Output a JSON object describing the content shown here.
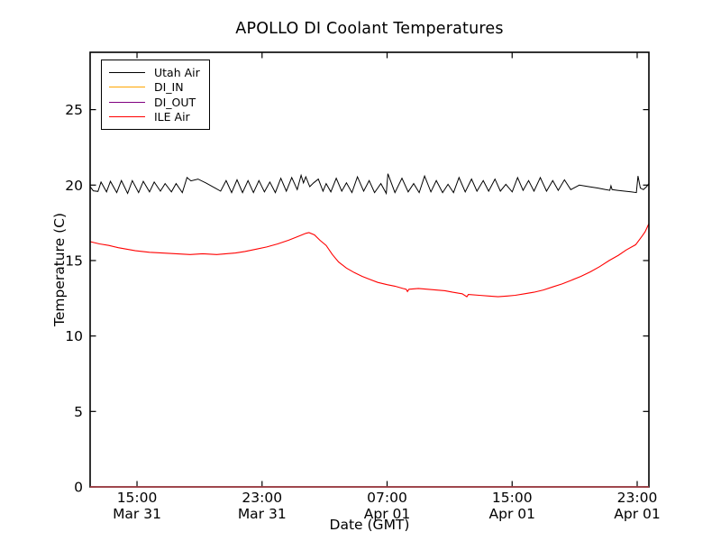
{
  "figure": {
    "kind": "matplotlib line chart"
  },
  "chart_data": {
    "type": "line",
    "title": "APOLLO DI Coolant Temperatures",
    "xlabel": "Date (GMT)",
    "ylabel": "Temperature (C)",
    "x_unit": "hours since Mar 31 12:00 GMT",
    "xlim": [
      0,
      35.75
    ],
    "ylim": [
      0,
      28.8
    ],
    "yticks": [
      0,
      5,
      10,
      15,
      20,
      25
    ],
    "xticks": [
      {
        "t": 3,
        "time": "15:00",
        "date": "Mar 31"
      },
      {
        "t": 11,
        "time": "23:00",
        "date": "Mar 31"
      },
      {
        "t": 19,
        "time": "07:00",
        "date": "Apr 01"
      },
      {
        "t": 27,
        "time": "15:00",
        "date": "Apr 01"
      },
      {
        "t": 35,
        "time": "23:00",
        "date": "Apr 01"
      }
    ],
    "grid": false,
    "legend_position": "upper left",
    "series": [
      {
        "name": "Utah Air",
        "color": "#000000",
        "width": 1.0,
        "opacity": 1.0,
        "points": [
          [
            0,
            19.9
          ],
          [
            0.2,
            19.62
          ],
          [
            0.5,
            19.58
          ],
          [
            0.7,
            20.2
          ],
          [
            1.05,
            19.55
          ],
          [
            1.3,
            20.25
          ],
          [
            1.7,
            19.5
          ],
          [
            2.0,
            20.3
          ],
          [
            2.4,
            19.45
          ],
          [
            2.7,
            20.3
          ],
          [
            3.1,
            19.5
          ],
          [
            3.4,
            20.25
          ],
          [
            3.8,
            19.55
          ],
          [
            4.1,
            20.2
          ],
          [
            4.5,
            19.6
          ],
          [
            4.8,
            20.1
          ],
          [
            5.2,
            19.55
          ],
          [
            5.5,
            20.1
          ],
          [
            5.9,
            19.5
          ],
          [
            6.2,
            20.5
          ],
          [
            6.45,
            20.28
          ],
          [
            6.9,
            20.4
          ],
          [
            7.4,
            20.15
          ],
          [
            8.0,
            19.8
          ],
          [
            8.35,
            19.6
          ],
          [
            8.7,
            20.3
          ],
          [
            9.05,
            19.5
          ],
          [
            9.4,
            20.35
          ],
          [
            9.75,
            19.5
          ],
          [
            10.1,
            20.3
          ],
          [
            10.45,
            19.5
          ],
          [
            10.8,
            20.3
          ],
          [
            11.15,
            19.55
          ],
          [
            11.5,
            20.2
          ],
          [
            11.85,
            19.5
          ],
          [
            12.2,
            20.45
          ],
          [
            12.55,
            19.6
          ],
          [
            12.9,
            20.5
          ],
          [
            13.25,
            19.7
          ],
          [
            13.5,
            20.65
          ],
          [
            13.65,
            20.15
          ],
          [
            13.8,
            20.55
          ],
          [
            14.05,
            19.9
          ],
          [
            14.3,
            20.15
          ],
          [
            14.6,
            20.4
          ],
          [
            14.9,
            19.6
          ],
          [
            15.1,
            20.1
          ],
          [
            15.4,
            19.55
          ],
          [
            15.75,
            20.45
          ],
          [
            16.1,
            19.6
          ],
          [
            16.4,
            20.15
          ],
          [
            16.75,
            19.5
          ],
          [
            17.1,
            20.55
          ],
          [
            17.5,
            19.6
          ],
          [
            17.85,
            20.3
          ],
          [
            18.2,
            19.5
          ],
          [
            18.6,
            20.1
          ],
          [
            18.95,
            19.45
          ],
          [
            19.05,
            20.75
          ],
          [
            19.5,
            19.5
          ],
          [
            19.95,
            20.45
          ],
          [
            20.35,
            19.55
          ],
          [
            20.7,
            20.1
          ],
          [
            21.05,
            19.5
          ],
          [
            21.4,
            20.6
          ],
          [
            21.8,
            19.55
          ],
          [
            22.15,
            20.3
          ],
          [
            22.55,
            19.5
          ],
          [
            22.9,
            20.05
          ],
          [
            23.25,
            19.5
          ],
          [
            23.6,
            20.5
          ],
          [
            24.0,
            19.55
          ],
          [
            24.4,
            20.4
          ],
          [
            24.75,
            19.6
          ],
          [
            25.15,
            20.3
          ],
          [
            25.5,
            19.6
          ],
          [
            25.9,
            20.4
          ],
          [
            26.25,
            19.6
          ],
          [
            26.6,
            20.05
          ],
          [
            27.0,
            19.55
          ],
          [
            27.35,
            20.5
          ],
          [
            27.7,
            19.65
          ],
          [
            28.05,
            20.3
          ],
          [
            28.4,
            19.6
          ],
          [
            28.8,
            20.5
          ],
          [
            29.2,
            19.6
          ],
          [
            29.6,
            20.3
          ],
          [
            29.95,
            19.65
          ],
          [
            30.35,
            20.35
          ],
          [
            30.75,
            19.7
          ],
          [
            31.3,
            20.0
          ],
          [
            31.9,
            19.9
          ],
          [
            32.5,
            19.8
          ],
          [
            32.9,
            19.72
          ],
          [
            33.25,
            19.65
          ],
          [
            33.32,
            19.95
          ],
          [
            33.4,
            19.7
          ],
          [
            33.75,
            19.65
          ],
          [
            34.2,
            19.6
          ],
          [
            34.6,
            19.55
          ],
          [
            34.95,
            19.5
          ],
          [
            35.05,
            20.6
          ],
          [
            35.2,
            19.8
          ],
          [
            35.4,
            19.7
          ],
          [
            35.6,
            19.9
          ],
          [
            35.75,
            20.1
          ]
        ]
      },
      {
        "name": "DI_IN",
        "color": "#ffa500",
        "width": 1.4,
        "opacity": 0.85,
        "points": [
          [
            0,
            0
          ],
          [
            35.75,
            0
          ]
        ]
      },
      {
        "name": "DI_OUT",
        "color": "#800080",
        "width": 1.4,
        "opacity": 0.6,
        "points": [
          [
            0,
            0
          ],
          [
            35.75,
            0
          ]
        ]
      },
      {
        "name": "ILE Air",
        "color": "#ff0000",
        "width": 1.1,
        "opacity": 1.0,
        "points": [
          [
            0,
            16.25
          ],
          [
            0.6,
            16.1
          ],
          [
            1.2,
            16.0
          ],
          [
            1.8,
            15.85
          ],
          [
            2.9,
            15.65
          ],
          [
            3.8,
            15.55
          ],
          [
            4.6,
            15.5
          ],
          [
            5.5,
            15.45
          ],
          [
            6.4,
            15.4
          ],
          [
            7.2,
            15.45
          ],
          [
            8.1,
            15.4
          ],
          [
            8.7,
            15.45
          ],
          [
            9.3,
            15.5
          ],
          [
            9.9,
            15.6
          ],
          [
            10.6,
            15.75
          ],
          [
            11.3,
            15.9
          ],
          [
            12.0,
            16.1
          ],
          [
            12.7,
            16.35
          ],
          [
            13.3,
            16.6
          ],
          [
            13.8,
            16.8
          ],
          [
            14.0,
            16.85
          ],
          [
            14.35,
            16.7
          ],
          [
            14.7,
            16.35
          ],
          [
            15.1,
            16.0
          ],
          [
            15.5,
            15.4
          ],
          [
            15.9,
            14.9
          ],
          [
            16.4,
            14.5
          ],
          [
            16.9,
            14.2
          ],
          [
            17.4,
            13.95
          ],
          [
            17.9,
            13.75
          ],
          [
            18.4,
            13.55
          ],
          [
            19.0,
            13.4
          ],
          [
            19.5,
            13.3
          ],
          [
            20.0,
            13.15
          ],
          [
            20.22,
            13.1
          ],
          [
            20.3,
            12.95
          ],
          [
            20.4,
            13.1
          ],
          [
            21.0,
            13.15
          ],
          [
            21.6,
            13.1
          ],
          [
            22.1,
            13.05
          ],
          [
            22.7,
            13.0
          ],
          [
            23.2,
            12.9
          ],
          [
            23.8,
            12.8
          ],
          [
            24.1,
            12.6
          ],
          [
            24.2,
            12.75
          ],
          [
            24.9,
            12.7
          ],
          [
            25.5,
            12.65
          ],
          [
            26.1,
            12.6
          ],
          [
            26.7,
            12.65
          ],
          [
            27.2,
            12.7
          ],
          [
            27.8,
            12.8
          ],
          [
            28.4,
            12.9
          ],
          [
            29.0,
            13.05
          ],
          [
            29.6,
            13.25
          ],
          [
            30.2,
            13.45
          ],
          [
            30.8,
            13.7
          ],
          [
            31.4,
            13.95
          ],
          [
            32.0,
            14.25
          ],
          [
            32.6,
            14.6
          ],
          [
            33.2,
            15.0
          ],
          [
            33.8,
            15.35
          ],
          [
            34.3,
            15.7
          ],
          [
            34.9,
            16.05
          ],
          [
            35.3,
            16.6
          ],
          [
            35.5,
            16.9
          ],
          [
            35.75,
            17.45
          ]
        ]
      }
    ]
  }
}
